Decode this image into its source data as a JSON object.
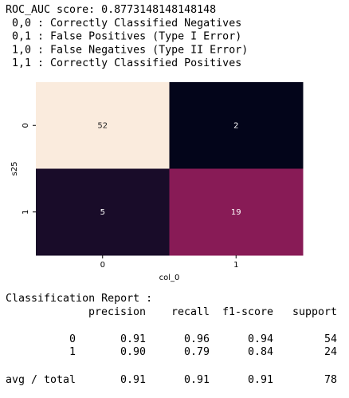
{
  "lines": [
    "ROC_AUC score: 0.8773148148148148",
    " 0,0 : Correctly Classified Negatives",
    " 0,1 : False Positives (Type I Error)",
    " 1,0 : False Negatives (Type II Error)",
    " 1,1 : Correctly Classified Positives"
  ],
  "chart_data": {
    "type": "heatmap",
    "x_categories": [
      "0",
      "1"
    ],
    "y_categories": [
      "0",
      "1"
    ],
    "values": [
      [
        52,
        2
      ],
      [
        5,
        19
      ]
    ],
    "xlabel": "col_0",
    "ylabel": "s25",
    "colormap": [
      "#03051a",
      "#4c1d4b",
      "#a11a5b",
      "#e83f3f",
      "#f69c73",
      "#faebdd"
    ]
  },
  "report": {
    "title": "Classification Report :",
    "columns": [
      "precision",
      "recall",
      "f1-score",
      "support"
    ],
    "rows": [
      [
        "0",
        "0.91",
        "0.96",
        "0.94",
        "54"
      ],
      [
        "1",
        "0.90",
        "0.79",
        "0.84",
        "24"
      ],
      [
        "avg / total",
        "0.91",
        "0.91",
        "0.91",
        "78"
      ]
    ]
  }
}
